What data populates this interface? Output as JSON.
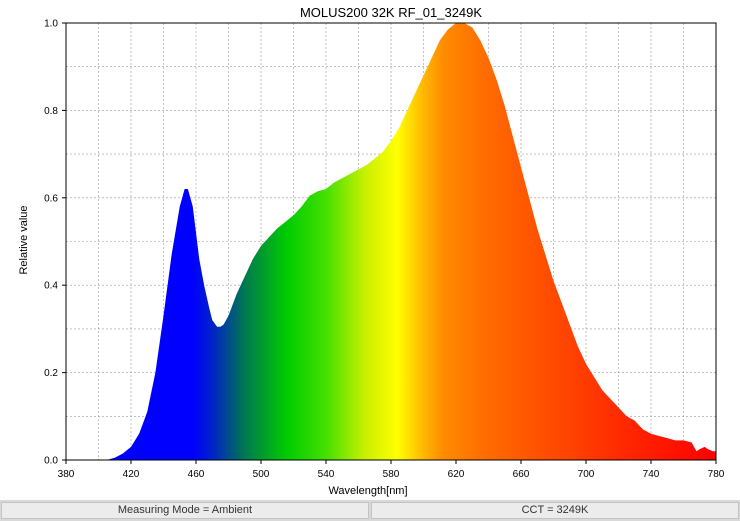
{
  "chart_data": {
    "type": "area",
    "title": "MOLUS200 32K RF_01_3249K",
    "xlabel": "Wavelength[nm]",
    "ylabel": "Relative value",
    "xlim": [
      380,
      780
    ],
    "ylim": [
      0,
      1.0
    ],
    "x_ticks": [
      "380",
      "420",
      "460",
      "500",
      "540",
      "580",
      "620",
      "660",
      "700",
      "740",
      "780"
    ],
    "y_ticks": [
      "0.0",
      "0.2",
      "0.4",
      "0.6",
      "0.8",
      "1.0"
    ],
    "grid": true,
    "fill": "visible-spectrum gradient",
    "series": [
      {
        "x": [
          400,
          405,
          410,
          415,
          420,
          425,
          430,
          435,
          440,
          445,
          450,
          453,
          455,
          458,
          460,
          462,
          465,
          468,
          470,
          473,
          475,
          477,
          480,
          483,
          485,
          490,
          495,
          500,
          505,
          510,
          515,
          520,
          525,
          530,
          535,
          540,
          545,
          550,
          555,
          560,
          565,
          570,
          575,
          580,
          585,
          590,
          595,
          600,
          605,
          610,
          615,
          620,
          625,
          630,
          635,
          640,
          645,
          650,
          655,
          660,
          665,
          670,
          675,
          680,
          685,
          690,
          695,
          700,
          705,
          710,
          715,
          720,
          725,
          730,
          735,
          740,
          745,
          750,
          755,
          760,
          765,
          768,
          770,
          773,
          775,
          778,
          780
        ],
        "y": [
          0.0,
          0.0,
          0.005,
          0.015,
          0.03,
          0.06,
          0.11,
          0.2,
          0.33,
          0.47,
          0.58,
          0.62,
          0.62,
          0.58,
          0.52,
          0.46,
          0.4,
          0.35,
          0.32,
          0.305,
          0.305,
          0.31,
          0.33,
          0.36,
          0.38,
          0.42,
          0.46,
          0.49,
          0.51,
          0.53,
          0.545,
          0.56,
          0.58,
          0.605,
          0.615,
          0.62,
          0.635,
          0.645,
          0.655,
          0.665,
          0.675,
          0.69,
          0.705,
          0.73,
          0.76,
          0.8,
          0.84,
          0.88,
          0.92,
          0.96,
          0.985,
          1.0,
          1.0,
          0.99,
          0.96,
          0.92,
          0.87,
          0.81,
          0.74,
          0.67,
          0.6,
          0.53,
          0.47,
          0.41,
          0.36,
          0.31,
          0.26,
          0.22,
          0.19,
          0.16,
          0.14,
          0.12,
          0.1,
          0.09,
          0.07,
          0.06,
          0.055,
          0.05,
          0.045,
          0.045,
          0.04,
          0.02,
          0.025,
          0.03,
          0.025,
          0.02,
          0.02
        ]
      }
    ]
  },
  "status": {
    "measuring_mode": "Measuring Mode = Ambient",
    "cct": "CCT = 3249K"
  }
}
